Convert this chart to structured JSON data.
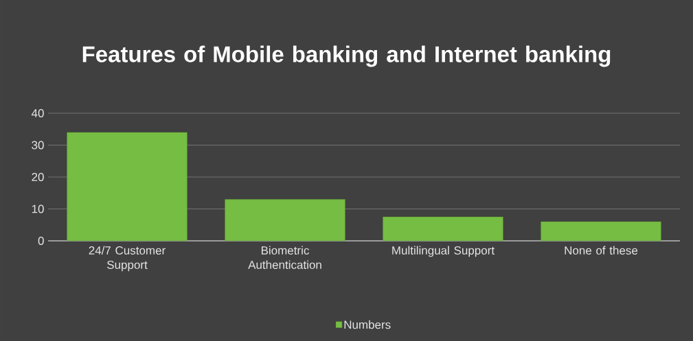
{
  "chart_data": {
    "type": "bar",
    "title": "Features of Mobile banking and Internet banking",
    "categories": [
      "24/7 Customer Support",
      "Biometric Authentication",
      "Multilingual Support",
      "None of these"
    ],
    "series": [
      {
        "name": "Numbers",
        "color": "#76bd43",
        "values": [
          34,
          13,
          7.5,
          6
        ]
      }
    ],
    "ylim": [
      0,
      40
    ],
    "yticks": [
      0,
      10,
      20,
      30,
      40
    ],
    "grid": "y",
    "legend": "bottom"
  }
}
